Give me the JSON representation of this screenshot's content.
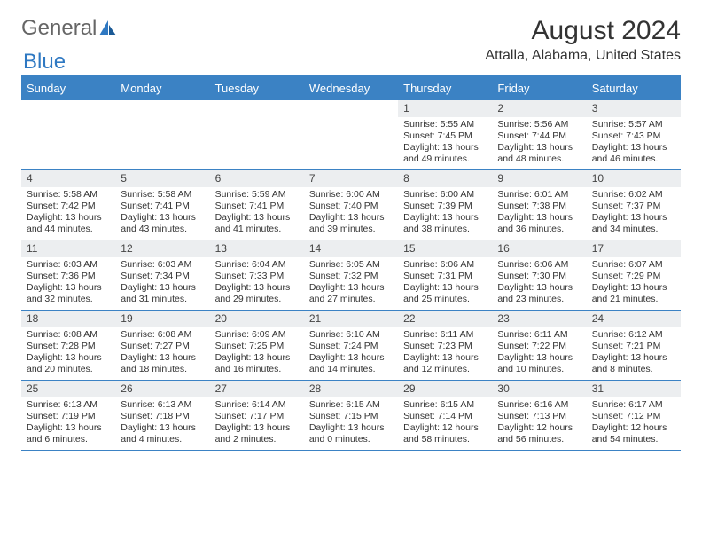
{
  "logo": {
    "text1": "General",
    "text2": "Blue"
  },
  "title": "August 2024",
  "location": "Attalla, Alabama, United States",
  "colors": {
    "header_bg": "#3b82c4",
    "header_text": "#ffffff",
    "num_bg": "#eceef0",
    "border": "#3b82c4",
    "text": "#333333"
  },
  "day_names": [
    "Sunday",
    "Monday",
    "Tuesday",
    "Wednesday",
    "Thursday",
    "Friday",
    "Saturday"
  ],
  "weeks": [
    [
      {
        "n": "",
        "sr": "",
        "ss": "",
        "d1": "",
        "d2": ""
      },
      {
        "n": "",
        "sr": "",
        "ss": "",
        "d1": "",
        "d2": ""
      },
      {
        "n": "",
        "sr": "",
        "ss": "",
        "d1": "",
        "d2": ""
      },
      {
        "n": "",
        "sr": "",
        "ss": "",
        "d1": "",
        "d2": ""
      },
      {
        "n": "1",
        "sr": "Sunrise: 5:55 AM",
        "ss": "Sunset: 7:45 PM",
        "d1": "Daylight: 13 hours",
        "d2": "and 49 minutes."
      },
      {
        "n": "2",
        "sr": "Sunrise: 5:56 AM",
        "ss": "Sunset: 7:44 PM",
        "d1": "Daylight: 13 hours",
        "d2": "and 48 minutes."
      },
      {
        "n": "3",
        "sr": "Sunrise: 5:57 AM",
        "ss": "Sunset: 7:43 PM",
        "d1": "Daylight: 13 hours",
        "d2": "and 46 minutes."
      }
    ],
    [
      {
        "n": "4",
        "sr": "Sunrise: 5:58 AM",
        "ss": "Sunset: 7:42 PM",
        "d1": "Daylight: 13 hours",
        "d2": "and 44 minutes."
      },
      {
        "n": "5",
        "sr": "Sunrise: 5:58 AM",
        "ss": "Sunset: 7:41 PM",
        "d1": "Daylight: 13 hours",
        "d2": "and 43 minutes."
      },
      {
        "n": "6",
        "sr": "Sunrise: 5:59 AM",
        "ss": "Sunset: 7:41 PM",
        "d1": "Daylight: 13 hours",
        "d2": "and 41 minutes."
      },
      {
        "n": "7",
        "sr": "Sunrise: 6:00 AM",
        "ss": "Sunset: 7:40 PM",
        "d1": "Daylight: 13 hours",
        "d2": "and 39 minutes."
      },
      {
        "n": "8",
        "sr": "Sunrise: 6:00 AM",
        "ss": "Sunset: 7:39 PM",
        "d1": "Daylight: 13 hours",
        "d2": "and 38 minutes."
      },
      {
        "n": "9",
        "sr": "Sunrise: 6:01 AM",
        "ss": "Sunset: 7:38 PM",
        "d1": "Daylight: 13 hours",
        "d2": "and 36 minutes."
      },
      {
        "n": "10",
        "sr": "Sunrise: 6:02 AM",
        "ss": "Sunset: 7:37 PM",
        "d1": "Daylight: 13 hours",
        "d2": "and 34 minutes."
      }
    ],
    [
      {
        "n": "11",
        "sr": "Sunrise: 6:03 AM",
        "ss": "Sunset: 7:36 PM",
        "d1": "Daylight: 13 hours",
        "d2": "and 32 minutes."
      },
      {
        "n": "12",
        "sr": "Sunrise: 6:03 AM",
        "ss": "Sunset: 7:34 PM",
        "d1": "Daylight: 13 hours",
        "d2": "and 31 minutes."
      },
      {
        "n": "13",
        "sr": "Sunrise: 6:04 AM",
        "ss": "Sunset: 7:33 PM",
        "d1": "Daylight: 13 hours",
        "d2": "and 29 minutes."
      },
      {
        "n": "14",
        "sr": "Sunrise: 6:05 AM",
        "ss": "Sunset: 7:32 PM",
        "d1": "Daylight: 13 hours",
        "d2": "and 27 minutes."
      },
      {
        "n": "15",
        "sr": "Sunrise: 6:06 AM",
        "ss": "Sunset: 7:31 PM",
        "d1": "Daylight: 13 hours",
        "d2": "and 25 minutes."
      },
      {
        "n": "16",
        "sr": "Sunrise: 6:06 AM",
        "ss": "Sunset: 7:30 PM",
        "d1": "Daylight: 13 hours",
        "d2": "and 23 minutes."
      },
      {
        "n": "17",
        "sr": "Sunrise: 6:07 AM",
        "ss": "Sunset: 7:29 PM",
        "d1": "Daylight: 13 hours",
        "d2": "and 21 minutes."
      }
    ],
    [
      {
        "n": "18",
        "sr": "Sunrise: 6:08 AM",
        "ss": "Sunset: 7:28 PM",
        "d1": "Daylight: 13 hours",
        "d2": "and 20 minutes."
      },
      {
        "n": "19",
        "sr": "Sunrise: 6:08 AM",
        "ss": "Sunset: 7:27 PM",
        "d1": "Daylight: 13 hours",
        "d2": "and 18 minutes."
      },
      {
        "n": "20",
        "sr": "Sunrise: 6:09 AM",
        "ss": "Sunset: 7:25 PM",
        "d1": "Daylight: 13 hours",
        "d2": "and 16 minutes."
      },
      {
        "n": "21",
        "sr": "Sunrise: 6:10 AM",
        "ss": "Sunset: 7:24 PM",
        "d1": "Daylight: 13 hours",
        "d2": "and 14 minutes."
      },
      {
        "n": "22",
        "sr": "Sunrise: 6:11 AM",
        "ss": "Sunset: 7:23 PM",
        "d1": "Daylight: 13 hours",
        "d2": "and 12 minutes."
      },
      {
        "n": "23",
        "sr": "Sunrise: 6:11 AM",
        "ss": "Sunset: 7:22 PM",
        "d1": "Daylight: 13 hours",
        "d2": "and 10 minutes."
      },
      {
        "n": "24",
        "sr": "Sunrise: 6:12 AM",
        "ss": "Sunset: 7:21 PM",
        "d1": "Daylight: 13 hours",
        "d2": "and 8 minutes."
      }
    ],
    [
      {
        "n": "25",
        "sr": "Sunrise: 6:13 AM",
        "ss": "Sunset: 7:19 PM",
        "d1": "Daylight: 13 hours",
        "d2": "and 6 minutes."
      },
      {
        "n": "26",
        "sr": "Sunrise: 6:13 AM",
        "ss": "Sunset: 7:18 PM",
        "d1": "Daylight: 13 hours",
        "d2": "and 4 minutes."
      },
      {
        "n": "27",
        "sr": "Sunrise: 6:14 AM",
        "ss": "Sunset: 7:17 PM",
        "d1": "Daylight: 13 hours",
        "d2": "and 2 minutes."
      },
      {
        "n": "28",
        "sr": "Sunrise: 6:15 AM",
        "ss": "Sunset: 7:15 PM",
        "d1": "Daylight: 13 hours",
        "d2": "and 0 minutes."
      },
      {
        "n": "29",
        "sr": "Sunrise: 6:15 AM",
        "ss": "Sunset: 7:14 PM",
        "d1": "Daylight: 12 hours",
        "d2": "and 58 minutes."
      },
      {
        "n": "30",
        "sr": "Sunrise: 6:16 AM",
        "ss": "Sunset: 7:13 PM",
        "d1": "Daylight: 12 hours",
        "d2": "and 56 minutes."
      },
      {
        "n": "31",
        "sr": "Sunrise: 6:17 AM",
        "ss": "Sunset: 7:12 PM",
        "d1": "Daylight: 12 hours",
        "d2": "and 54 minutes."
      }
    ]
  ]
}
